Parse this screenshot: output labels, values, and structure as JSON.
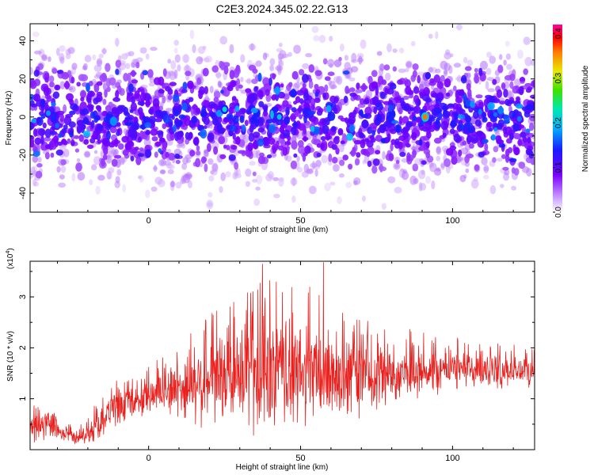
{
  "title": "C2E3.2024.345.02.22.G13",
  "colors": {
    "snr_line": "#e8211e",
    "axis": "#000000",
    "background": "#ffffff"
  },
  "chart_data": [
    {
      "type": "heatmap",
      "xlabel": "Height of straight line (km)",
      "ylabel": "Frequency (Hz)",
      "xlim": [
        -39,
        127
      ],
      "ylim": [
        -50,
        49
      ],
      "xticks": [
        0,
        50,
        100
      ],
      "yticks": [
        -40,
        -20,
        0,
        20,
        40
      ],
      "colorbar": {
        "label": "Normalized spectral amplitude",
        "range": [
          0,
          0.42
        ],
        "ticks": [
          "0.0",
          "0.1",
          "0.2",
          "0.3",
          "0.4"
        ],
        "tick_values": [
          0,
          0.1,
          0.2,
          0.3,
          0.4
        ],
        "colormap": "rainbow (white → violet → blue → cyan → green → yellow → red → magenta)"
      },
      "highlights": [
        {
          "x": 91,
          "y": 0,
          "value": 0.36
        },
        {
          "x": 25,
          "y": 4,
          "value": 0.22
        },
        {
          "x": 43,
          "y": 0,
          "value": 0.2
        },
        {
          "x": -33,
          "y": 2,
          "value": 0.18
        },
        {
          "x": 122,
          "y": -1,
          "value": 0.17
        }
      ]
    },
    {
      "type": "line",
      "xlabel": "Height of straight line (km)",
      "ylabel": "SNR (10 * v/v)",
      "scale_label": "(x10",
      "scale_exp": "4",
      "scale_close": ")",
      "xlim": [
        -39,
        127
      ],
      "ylim": [
        0,
        3.7
      ],
      "xticks": [
        0,
        50,
        100
      ],
      "yticks": [
        1,
        2,
        3
      ],
      "series": [
        {
          "envelope": {
            "x": [
              -39,
              -34,
              -29,
              -24,
              -19,
              -14,
              -9,
              -4,
              1,
              6,
              11,
              16,
              21,
              26,
              31,
              36,
              41,
              46,
              51,
              56,
              61,
              66,
              71,
              76,
              81,
              86,
              91,
              96,
              101,
              106,
              111,
              116,
              121,
              127
            ],
            "base": [
              0.4,
              0.5,
              0.3,
              0.25,
              0.35,
              0.7,
              0.85,
              0.95,
              1.05,
              1.15,
              1.2,
              1.3,
              1.35,
              1.4,
              1.45,
              1.45,
              1.45,
              1.5,
              1.45,
              1.45,
              1.5,
              1.45,
              1.45,
              1.5,
              1.5,
              1.55,
              1.55,
              1.55,
              1.6,
              1.55,
              1.55,
              1.55,
              1.55,
              1.55
            ],
            "amp": [
              0.35,
              0.35,
              0.2,
              0.15,
              0.3,
              0.4,
              0.4,
              0.35,
              0.45,
              0.55,
              0.75,
              0.9,
              1.0,
              1.1,
              1.3,
              1.4,
              1.4,
              1.3,
              1.2,
              1.2,
              1.1,
              1.0,
              0.9,
              0.8,
              0.7,
              0.6,
              0.55,
              0.5,
              0.45,
              0.45,
              0.45,
              0.4,
              0.4,
              0.35
            ]
          },
          "peaks": [
            {
              "x": 37.5,
              "y": 3.65
            },
            {
              "x": 57.5,
              "y": 3.68
            },
            {
              "x": 42,
              "y": 3.3
            },
            {
              "x": 53,
              "y": 3.2
            },
            {
              "x": 28,
              "y": 2.9
            }
          ]
        }
      ]
    }
  ]
}
